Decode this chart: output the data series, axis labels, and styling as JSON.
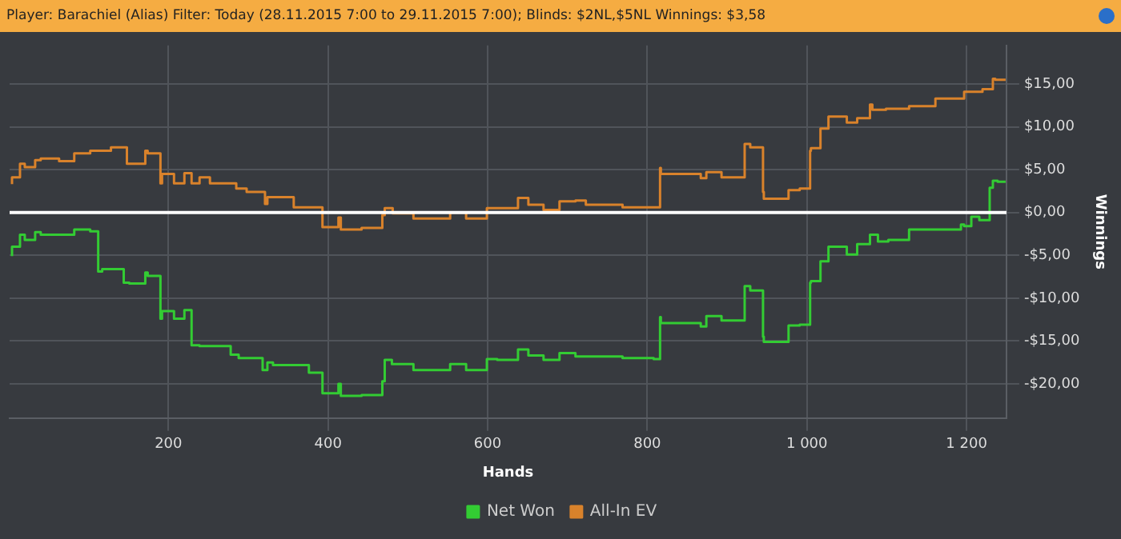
{
  "chart_data": {
    "type": "step",
    "title": "Player: Barachiel (Alias) Filter: Today (28.11.2015 7:00 to 29.11.2015 7:00); Blinds: $2NL,$5NL Winnings: $3,58",
    "xlabel": "Hands",
    "ylabel": "Winnings",
    "series": [
      {
        "name": "Net Won",
        "color": "#33cc33",
        "x": [
          4,
          14,
          20,
          33,
          40,
          82,
          102,
          112,
          117,
          144,
          151,
          171,
          174,
          190,
          192,
          207,
          220,
          229,
          239,
          278,
          288,
          318,
          324,
          331,
          376,
          393,
          399,
          413,
          416,
          442,
          468,
          471,
          480,
          507,
          553,
          573,
          599,
          612,
          638,
          651,
          670,
          690,
          710,
          769,
          808,
          816,
          817,
          867,
          874,
          893,
          922,
          929,
          935,
          945,
          946,
          977,
          991,
          1004,
          1005,
          1017,
          1027,
          1037,
          1050,
          1063,
          1079,
          1089,
          1102,
          1128,
          1161,
          1193,
          1197,
          1206,
          1216,
          1229,
          1233,
          1239,
          1249
        ],
        "values": [
          -5.1,
          -4.0,
          -2.6,
          -3.2,
          -2.3,
          -2.6,
          -2.0,
          -2.2,
          -6.9,
          -6.6,
          -8.2,
          -8.3,
          -7.0,
          -7.4,
          -12.4,
          -11.5,
          -12.4,
          -11.4,
          -15.5,
          -15.6,
          -16.6,
          -17.0,
          -18.4,
          -17.5,
          -17.8,
          -18.7,
          -21.1,
          -21.1,
          -20.0,
          -21.4,
          -21.3,
          -19.7,
          -17.2,
          -17.7,
          -18.4,
          -17.7,
          -18.4,
          -17.1,
          -17.2,
          -16.0,
          -16.7,
          -17.2,
          -16.4,
          -16.8,
          -17.0,
          -17.1,
          -12.2,
          -12.9,
          -13.3,
          -12.1,
          -12.6,
          -8.6,
          -9.1,
          -9.1,
          -14.5,
          -15.1,
          -13.2,
          -13.1,
          -8.2,
          -8.0,
          -5.7,
          -4.0,
          -4.0,
          -4.9,
          -3.7,
          -2.6,
          -3.4,
          -3.2,
          -2.0,
          -2.0,
          -1.4,
          -1.6,
          -0.5,
          -0.9,
          2.9,
          3.7,
          3.6
        ]
      },
      {
        "name": "All-In EV",
        "color": "#d9822b",
        "x": [
          4,
          14,
          20,
          33,
          40,
          63,
          82,
          102,
          128,
          148,
          151,
          171,
          174,
          190,
          192,
          207,
          220,
          229,
          239,
          252,
          285,
          298,
          321,
          324,
          331,
          357,
          393,
          399,
          413,
          416,
          442,
          468,
          471,
          481,
          507,
          553,
          573,
          599,
          612,
          638,
          651,
          670,
          690,
          710,
          723,
          769,
          808,
          816,
          817,
          867,
          874,
          893,
          922,
          929,
          935,
          945,
          946,
          977,
          991,
          1004,
          1005,
          1017,
          1027,
          1033,
          1050,
          1063,
          1079,
          1082,
          1099,
          1128,
          1161,
          1164,
          1197,
          1200,
          1220,
          1223,
          1233,
          1236,
          1249
        ],
        "values": [
          3.3,
          4.1,
          5.7,
          5.3,
          6.1,
          6.3,
          6.0,
          6.9,
          7.2,
          7.6,
          5.7,
          5.7,
          7.2,
          6.9,
          3.4,
          4.5,
          3.4,
          4.6,
          3.4,
          4.1,
          3.4,
          2.8,
          2.4,
          1.0,
          1.8,
          1.8,
          0.6,
          -1.7,
          -1.7,
          -0.6,
          -2.0,
          -1.8,
          -0.3,
          0.5,
          -0.1,
          -0.7,
          0,
          -0.7,
          0.5,
          0.5,
          1.7,
          0.9,
          0.3,
          1.3,
          1.4,
          0.9,
          0.6,
          0.6,
          5.2,
          4.5,
          4.0,
          4.7,
          4.1,
          8.0,
          7.6,
          7.6,
          2.4,
          1.6,
          2.6,
          2.8,
          7.2,
          7.5,
          9.8,
          11.2,
          11.2,
          10.5,
          11.0,
          12.6,
          12.0,
          12.1,
          12.4,
          13.3,
          13.3,
          14.1,
          14.1,
          14.4,
          14.4,
          15.6,
          15.5
        ]
      }
    ],
    "xlim": [
      1,
      1250
    ],
    "xticks": [
      200,
      400,
      600,
      800,
      {
        "value": 1000,
        "label": "1 000"
      },
      {
        "value": 1200,
        "label": "1 200"
      }
    ],
    "ylim": [
      -24,
      19.5
    ],
    "yticks": [
      {
        "value": -20,
        "label": "-$20,00"
      },
      {
        "value": -15,
        "label": "-$15,00"
      },
      {
        "value": -10,
        "label": "-$10,00"
      },
      {
        "value": -5,
        "label": "-$5,00"
      },
      {
        "value": 0,
        "label": "$0,00"
      },
      {
        "value": 5,
        "label": "$5,00"
      },
      {
        "value": 10,
        "label": "$10,00"
      },
      {
        "value": 15,
        "label": "$15,00"
      }
    ],
    "ref_lines": [
      {
        "axis": "y",
        "value": 0,
        "color": "#ffffff"
      }
    ],
    "grid": true,
    "legend": "bottom",
    "marker": "none",
    "line_style": "solid"
  }
}
